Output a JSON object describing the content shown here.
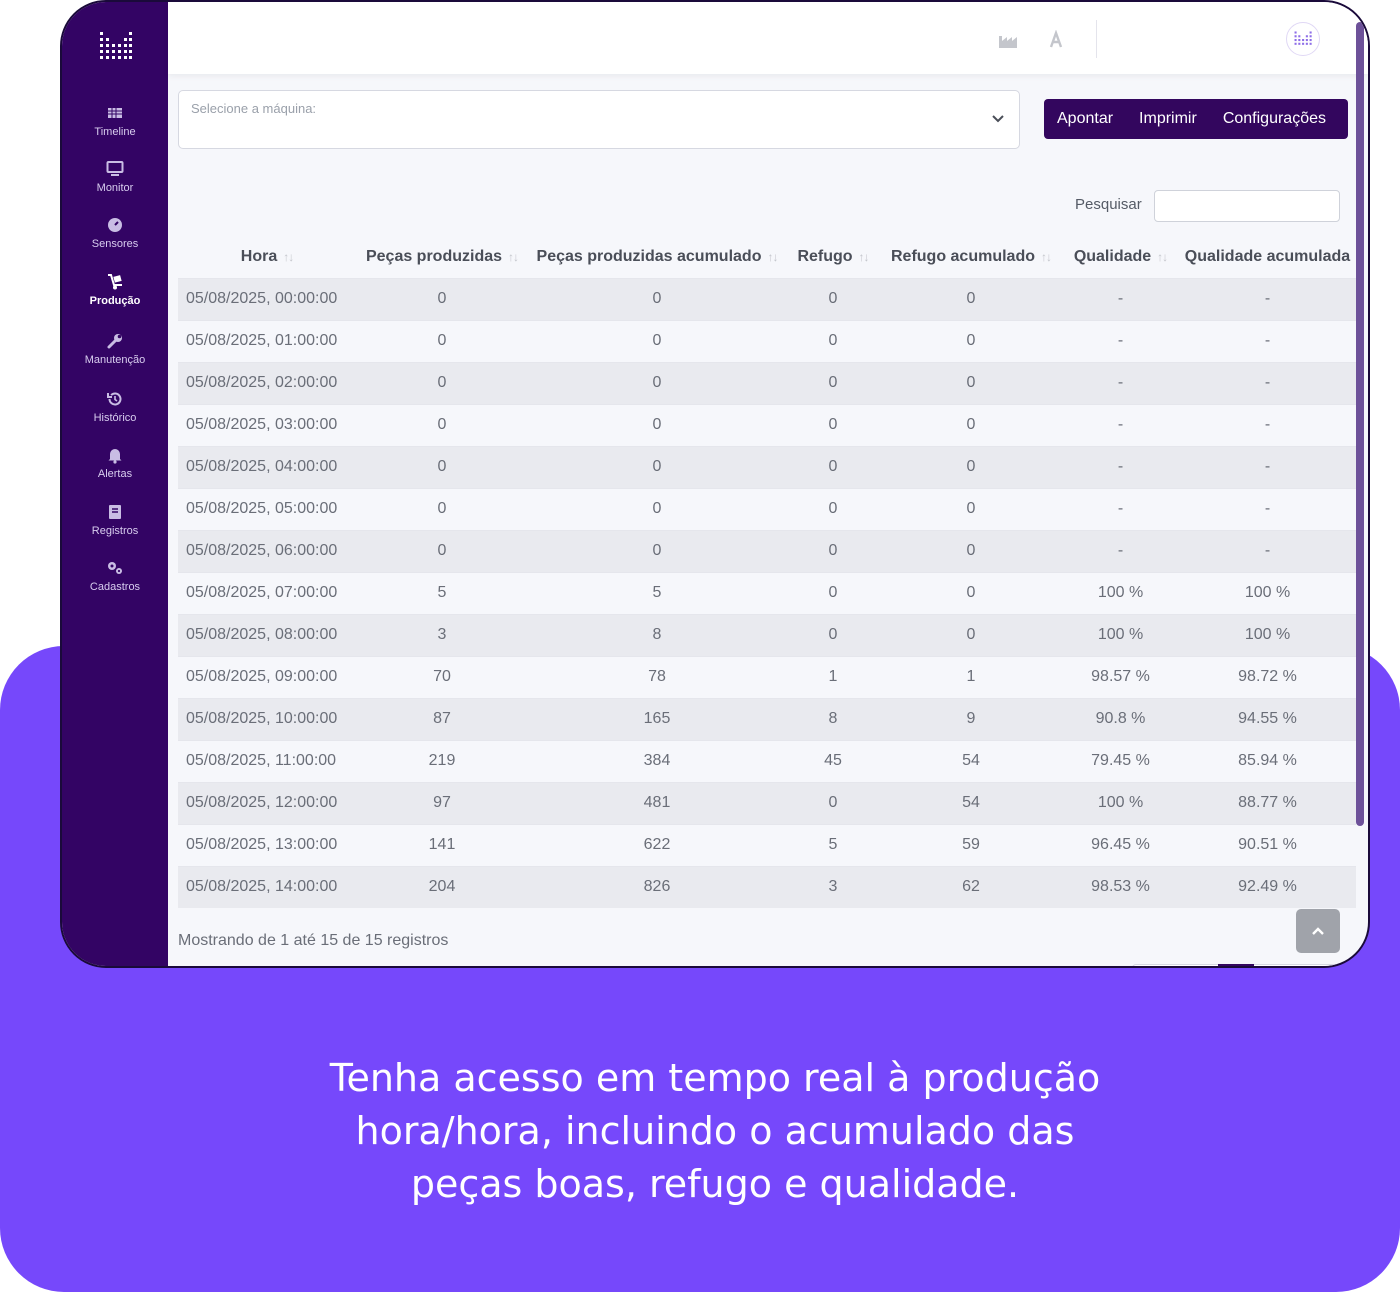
{
  "brand": {
    "primary": "#330464",
    "promo": "#7648fb"
  },
  "sidebar": {
    "items": [
      {
        "label": "Timeline",
        "icon": "timeline-icon"
      },
      {
        "label": "Monitor",
        "icon": "monitor-icon"
      },
      {
        "label": "Sensores",
        "icon": "gauge-icon"
      },
      {
        "label": "Produção",
        "icon": "dolly-icon",
        "active": true
      },
      {
        "label": "Manutenção",
        "icon": "wrench-icon"
      },
      {
        "label": "Histórico",
        "icon": "history-icon"
      },
      {
        "label": "Alertas",
        "icon": "bell-icon"
      },
      {
        "label": "Registros",
        "icon": "book-icon"
      },
      {
        "label": "Cadastros",
        "icon": "cogs-icon"
      }
    ]
  },
  "topbar": {
    "icons": [
      "factory-icon",
      "font-icon",
      "avatar-logo"
    ]
  },
  "machine_select": {
    "label": "Selecione a máquina:"
  },
  "actions": {
    "apontar": "Apontar",
    "imprimir": "Imprimir",
    "configuracoes": "Configurações"
  },
  "search": {
    "label": "Pesquisar",
    "value": ""
  },
  "table": {
    "columns": [
      "Hora",
      "Peças produzidas",
      "Peças produzidas acumulado",
      "Refugo",
      "Refugo acumulado",
      "Qualidade",
      "Qualidade acumulada"
    ],
    "rows": [
      [
        "05/08/2025, 00:00:00",
        "0",
        "0",
        "0",
        "0",
        "-",
        "-"
      ],
      [
        "05/08/2025, 01:00:00",
        "0",
        "0",
        "0",
        "0",
        "-",
        "-"
      ],
      [
        "05/08/2025, 02:00:00",
        "0",
        "0",
        "0",
        "0",
        "-",
        "-"
      ],
      [
        "05/08/2025, 03:00:00",
        "0",
        "0",
        "0",
        "0",
        "-",
        "-"
      ],
      [
        "05/08/2025, 04:00:00",
        "0",
        "0",
        "0",
        "0",
        "-",
        "-"
      ],
      [
        "05/08/2025, 05:00:00",
        "0",
        "0",
        "0",
        "0",
        "-",
        "-"
      ],
      [
        "05/08/2025, 06:00:00",
        "0",
        "0",
        "0",
        "0",
        "-",
        "-"
      ],
      [
        "05/08/2025, 07:00:00",
        "5",
        "5",
        "0",
        "0",
        "100 %",
        "100 %"
      ],
      [
        "05/08/2025, 08:00:00",
        "3",
        "8",
        "0",
        "0",
        "100 %",
        "100 %"
      ],
      [
        "05/08/2025, 09:00:00",
        "70",
        "78",
        "1",
        "1",
        "98.57 %",
        "98.72 %"
      ],
      [
        "05/08/2025, 10:00:00",
        "87",
        "165",
        "8",
        "9",
        "90.8 %",
        "94.55 %"
      ],
      [
        "05/08/2025, 11:00:00",
        "219",
        "384",
        "45",
        "54",
        "79.45 %",
        "85.94 %"
      ],
      [
        "05/08/2025, 12:00:00",
        "97",
        "481",
        "0",
        "54",
        "100 %",
        "88.77 %"
      ],
      [
        "05/08/2025, 13:00:00",
        "141",
        "622",
        "5",
        "59",
        "96.45 %",
        "90.51 %"
      ],
      [
        "05/08/2025, 14:00:00",
        "204",
        "826",
        "3",
        "62",
        "98.53 %",
        "92.49 %"
      ]
    ]
  },
  "footer": {
    "info": "Mostrando de 1 até 15 de 15 registros"
  },
  "caption": {
    "lines": [
      "Tenha acesso em tempo real à produção",
      "hora/hora, incluindo o acumulado das",
      "peças boas, refugo e qualidade."
    ]
  }
}
